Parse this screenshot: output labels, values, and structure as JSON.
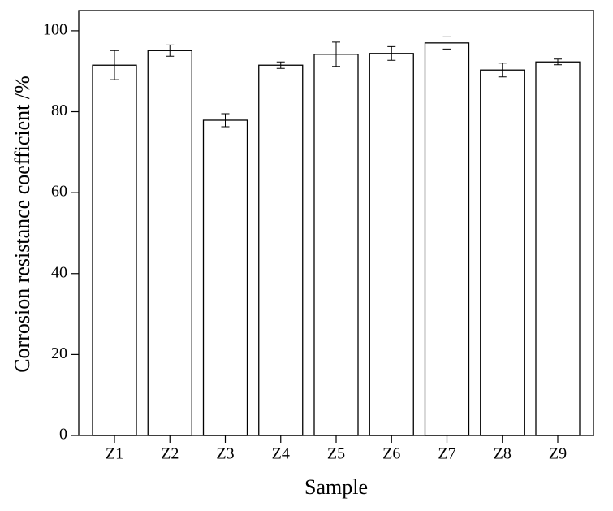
{
  "chart_data": {
    "type": "bar",
    "x_label": "Sample",
    "y_label": "Corrosion resistance coefficient /%",
    "categories": [
      "Z1",
      "Z2",
      "Z3",
      "Z4",
      "Z5",
      "Z6",
      "Z7",
      "Z8",
      "Z9"
    ],
    "values": [
      91.5,
      95.1,
      77.9,
      91.5,
      94.2,
      94.4,
      97.0,
      90.3,
      92.3
    ],
    "errors": [
      3.6,
      1.4,
      1.6,
      0.8,
      3.0,
      1.7,
      1.5,
      1.7,
      0.7
    ],
    "color": "#ffffff",
    "ylim": [
      0,
      105
    ],
    "yticks": [
      0,
      20,
      40,
      60,
      80,
      100
    ]
  }
}
